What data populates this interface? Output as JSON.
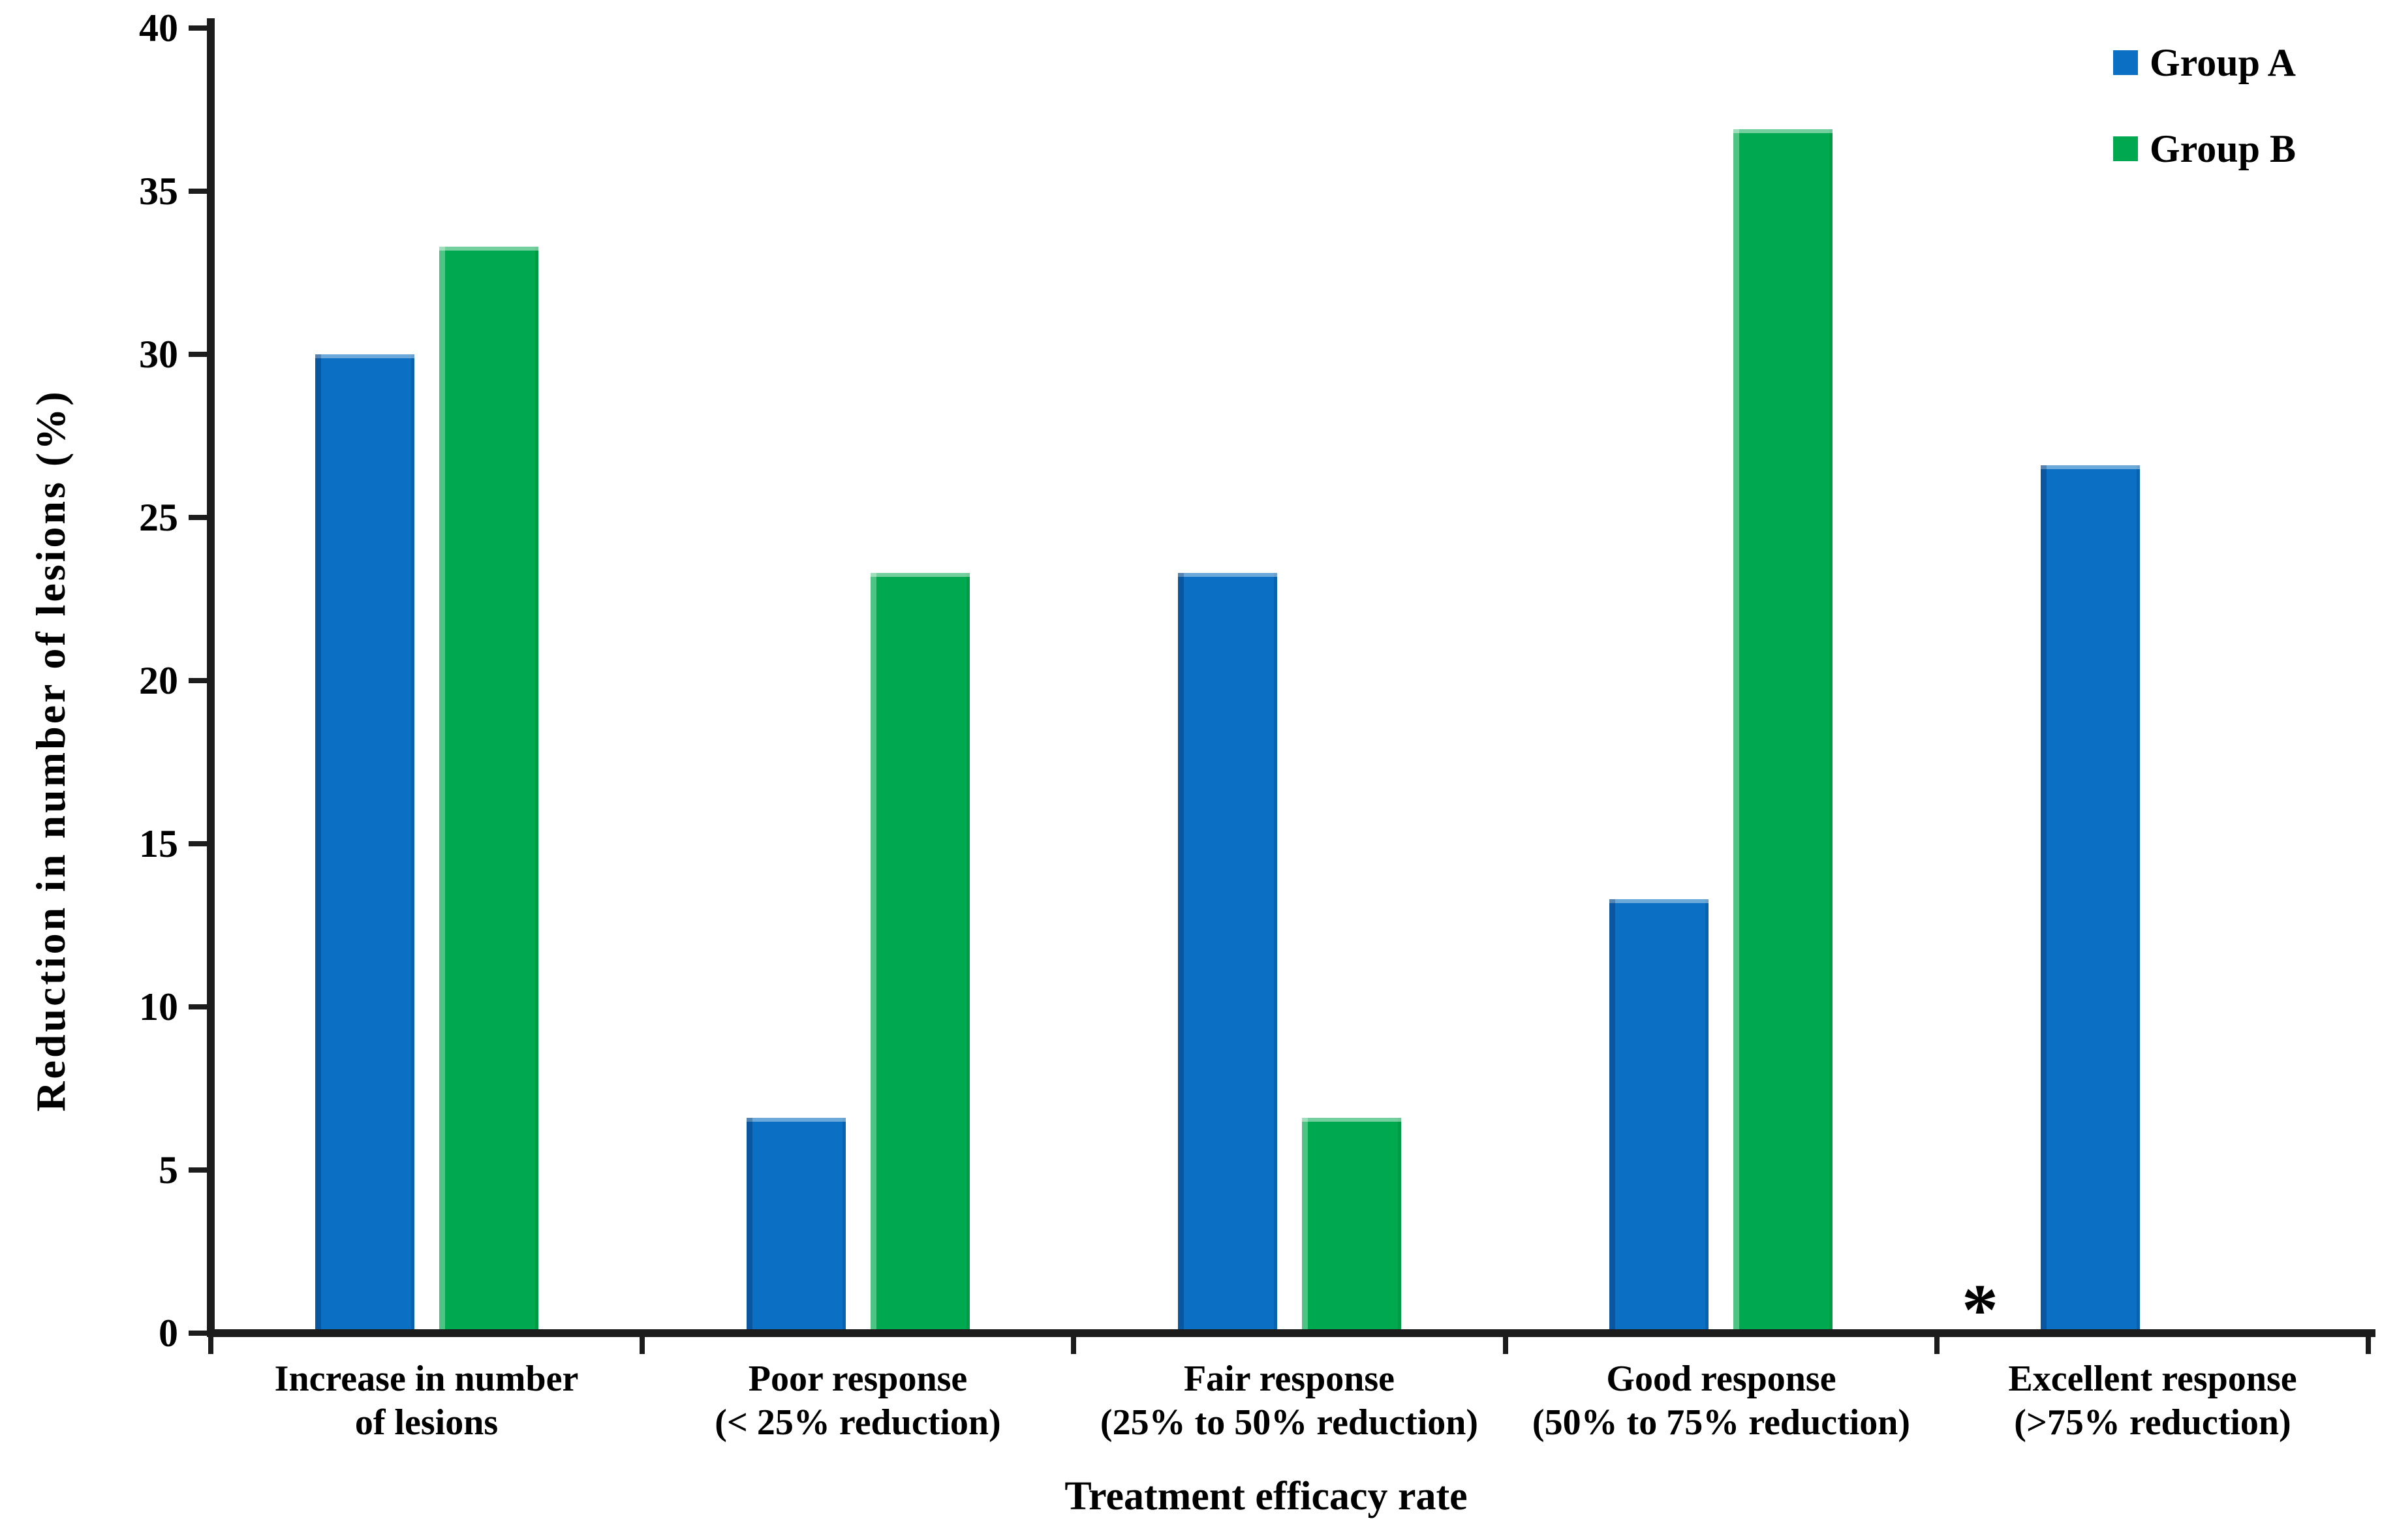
{
  "chart_data": {
    "type": "bar",
    "title": "",
    "xlabel": "Treatment efficacy rate",
    "ylabel": "Reduction in number of lesions  (%)",
    "ylim": [
      0,
      40
    ],
    "yticks": [
      "0",
      "5",
      "10",
      "15",
      "20",
      "25",
      "30",
      "35",
      "40"
    ],
    "grid": false,
    "legend_position": "top-right",
    "categories": [
      "Increase in number\nof lesions",
      "Poor response\n(< 25% reduction)",
      "Fair response\n(25% to 50% reduction)",
      "Good response\n(50% to 75% reduction)",
      "Excellent response\n(>75% reduction)"
    ],
    "series": [
      {
        "name": "Group A",
        "color": "#0b70c4",
        "values": [
          30.0,
          6.6,
          23.3,
          13.3,
          26.6
        ]
      },
      {
        "name": "Group B",
        "color": "#00a94f",
        "values": [
          33.3,
          23.3,
          6.6,
          36.9,
          0
        ]
      }
    ],
    "annotations": [
      {
        "symbol": "*",
        "category": "Excellent response (>75% reduction)",
        "series": "Group B"
      }
    ],
    "axis_color": "#1c1c1c",
    "text_color": "#000000"
  }
}
